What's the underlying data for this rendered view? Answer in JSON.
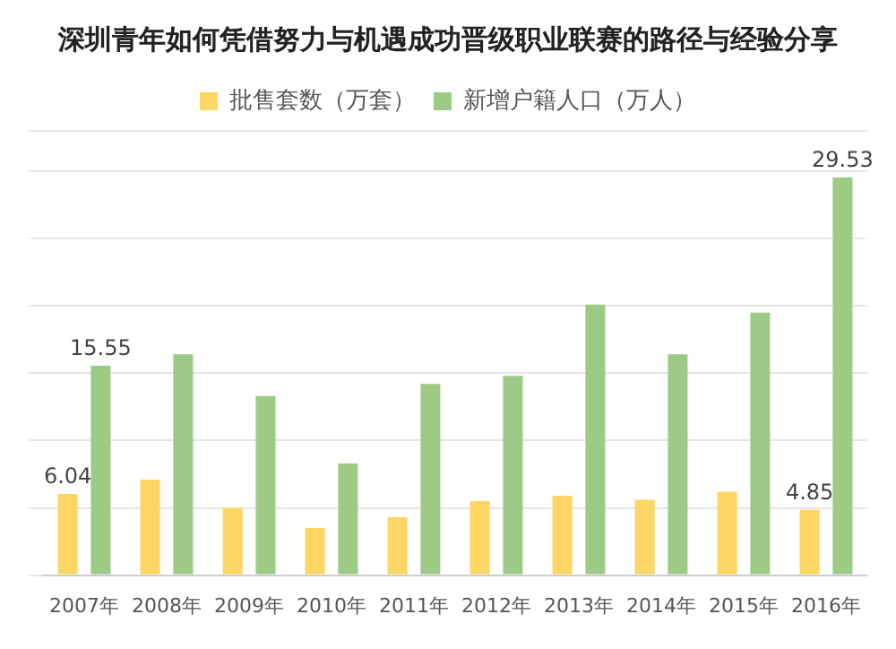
{
  "chart_data": {
    "type": "bar",
    "title": "深圳青年如何凭借努力与机遇成功晋级职业联赛的路径与经验分享",
    "tick_labels": "x",
    "grid": "y",
    "legend": "top",
    "categories": [
      "2007年",
      "2008年",
      "2009年",
      "2010年",
      "2011年",
      "2012年",
      "2013年",
      "2014年",
      "2015年",
      "2016年"
    ],
    "series": [
      {
        "name": "批售套数（万套）",
        "color": "#fdd663",
        "values": [
          6.04,
          7.1,
          5.0,
          3.5,
          4.3,
          5.5,
          5.9,
          5.6,
          6.2,
          4.85
        ],
        "value_labels": [
          "6.04",
          null,
          null,
          null,
          null,
          null,
          null,
          null,
          null,
          "4.85"
        ]
      },
      {
        "name": "新增户籍人口（万人）",
        "color": "#9dcb85",
        "values": [
          15.55,
          16.4,
          13.3,
          8.3,
          14.2,
          14.8,
          20.1,
          16.4,
          19.5,
          29.53
        ],
        "value_labels": [
          "15.55",
          null,
          null,
          null,
          null,
          null,
          null,
          null,
          null,
          "29.53"
        ]
      }
    ]
  }
}
